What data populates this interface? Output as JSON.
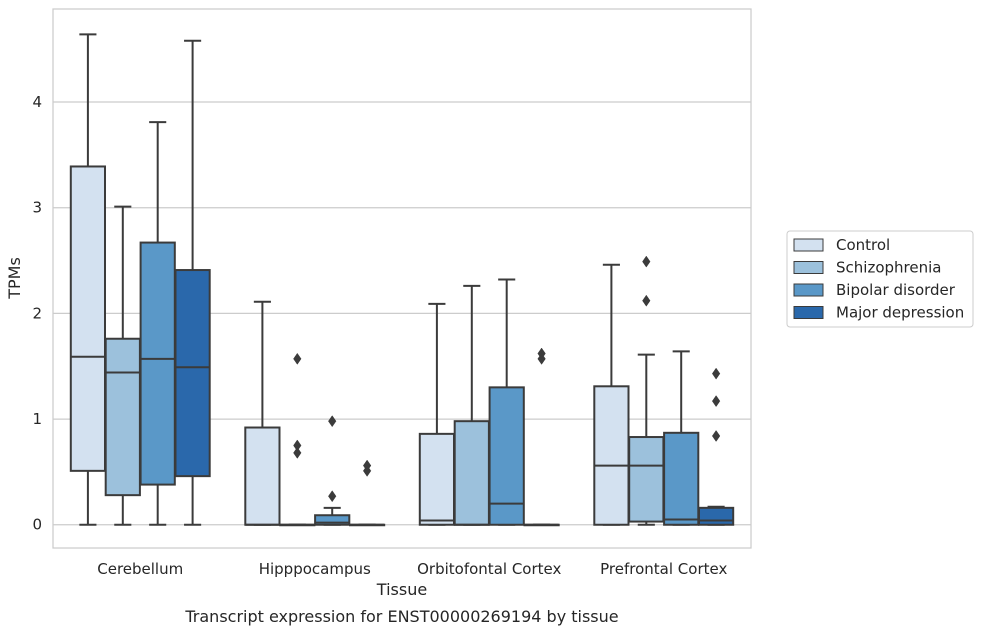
{
  "chart_data": {
    "type": "box",
    "xlabel": "Tissue",
    "ylabel": "TPMs",
    "caption": "Transcript expression for ENST00000269194 by tissue",
    "categories": [
      "Cerebellum",
      "Hipppocampus",
      "Orbitofontal Cortex",
      "Prefrontal Cortex"
    ],
    "ylim": [
      -0.22,
      4.88
    ],
    "yticks": [
      0,
      1,
      2,
      3,
      4
    ],
    "grid": "horizontal",
    "legend_position": "right",
    "colors": {
      "Control": "#d3e1f0",
      "Schizophrenia": "#9cc1dc",
      "Bipolar disorder": "#5a98c8",
      "Major depression": "#2a68ab",
      "line": "#3b3b3b",
      "grid": "#cccccc"
    },
    "series": [
      {
        "name": "Control",
        "boxes": [
          {
            "whislo": 0,
            "q1": 0.51,
            "med": 1.59,
            "q3": 3.39,
            "whishi": 4.64,
            "fliers": []
          },
          {
            "whislo": 0,
            "q1": 0,
            "med": 0,
            "q3": 0.92,
            "whishi": 2.11,
            "fliers": []
          },
          {
            "whislo": 0,
            "q1": 0,
            "med": 0.04,
            "q3": 0.86,
            "whishi": 2.09,
            "fliers": []
          },
          {
            "whislo": 0,
            "q1": 0,
            "med": 0.56,
            "q3": 1.31,
            "whishi": 2.46,
            "fliers": []
          }
        ]
      },
      {
        "name": "Schizophrenia",
        "boxes": [
          {
            "whislo": 0,
            "q1": 0.28,
            "med": 1.44,
            "q3": 1.76,
            "whishi": 3.01,
            "fliers": []
          },
          {
            "whislo": 0,
            "q1": 0,
            "med": 0,
            "q3": 0,
            "whishi": 0,
            "fliers": [
              0.68,
              0.75,
              1.57
            ]
          },
          {
            "whislo": 0,
            "q1": 0,
            "med": 0,
            "q3": 0.98,
            "whishi": 2.26,
            "fliers": []
          },
          {
            "whislo": 0,
            "q1": 0.03,
            "med": 0.56,
            "q3": 0.83,
            "whishi": 1.61,
            "fliers": [
              2.12,
              2.49
            ]
          }
        ]
      },
      {
        "name": "Bipolar disorder",
        "boxes": [
          {
            "whislo": 0,
            "q1": 0.38,
            "med": 1.57,
            "q3": 2.67,
            "whishi": 3.81,
            "fliers": []
          },
          {
            "whislo": 0,
            "q1": 0,
            "med": 0.02,
            "q3": 0.09,
            "whishi": 0.16,
            "fliers": [
              0.27,
              0.98
            ]
          },
          {
            "whislo": 0,
            "q1": 0,
            "med": 0.2,
            "q3": 1.3,
            "whishi": 2.32,
            "fliers": []
          },
          {
            "whislo": 0,
            "q1": 0,
            "med": 0.05,
            "q3": 0.87,
            "whishi": 1.64,
            "fliers": []
          }
        ]
      },
      {
        "name": "Major depression",
        "boxes": [
          {
            "whislo": 0,
            "q1": 0.46,
            "med": 1.49,
            "q3": 2.41,
            "whishi": 4.58,
            "fliers": []
          },
          {
            "whislo": 0,
            "q1": 0,
            "med": 0,
            "q3": 0,
            "whishi": 0,
            "fliers": [
              0.51,
              0.56
            ]
          },
          {
            "whislo": 0,
            "q1": 0,
            "med": 0,
            "q3": 0,
            "whishi": 0,
            "fliers": [
              1.57,
              1.62
            ]
          },
          {
            "whislo": 0,
            "q1": 0,
            "med": 0.04,
            "q3": 0.16,
            "whishi": 0.17,
            "fliers": [
              0.84,
              1.17,
              1.43
            ]
          }
        ]
      }
    ]
  }
}
